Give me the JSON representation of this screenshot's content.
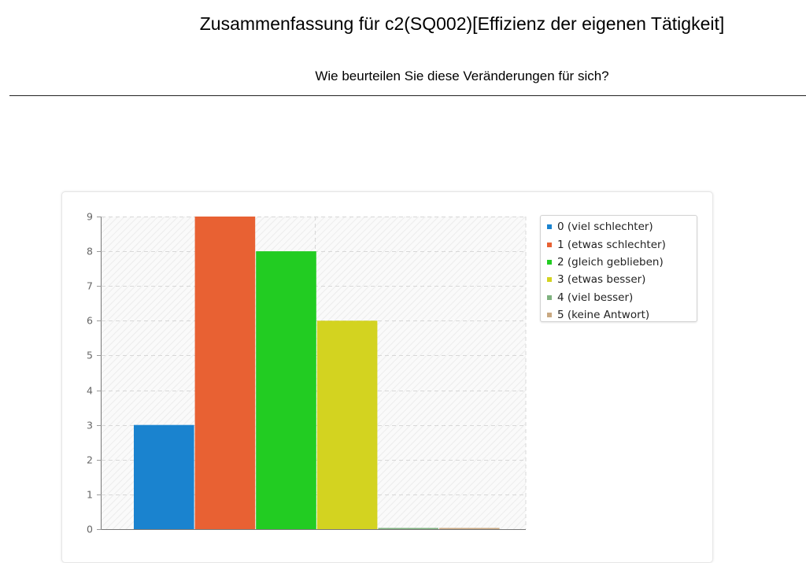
{
  "header": {
    "title": "Zusammenfassung für c2(SQ002)[Effizienz der eigenen Tätigkeit]",
    "question": "Wie beurteilen Sie diese Veränderungen für sich?"
  },
  "chart_data": {
    "type": "bar",
    "categories": [
      "0 (viel schlechter)",
      "1 (etwas schlechter)",
      "2 (gleich geblieben)",
      "3 (etwas besser)",
      "4 (viel besser)",
      "5 (keine Antwort)"
    ],
    "values": [
      3,
      9,
      8,
      6,
      0,
      0
    ],
    "colors": [
      "#1a83cf",
      "#e86133",
      "#22cc22",
      "#d3d320",
      "#7fb27f",
      "#c9a982"
    ],
    "yticks": [
      "0",
      "1",
      "2",
      "3",
      "4",
      "5",
      "6",
      "7",
      "8",
      "9"
    ],
    "ylim": [
      0,
      9
    ],
    "grid": true,
    "legend_position": "top-right",
    "title": "",
    "xlabel": "",
    "ylabel": ""
  }
}
